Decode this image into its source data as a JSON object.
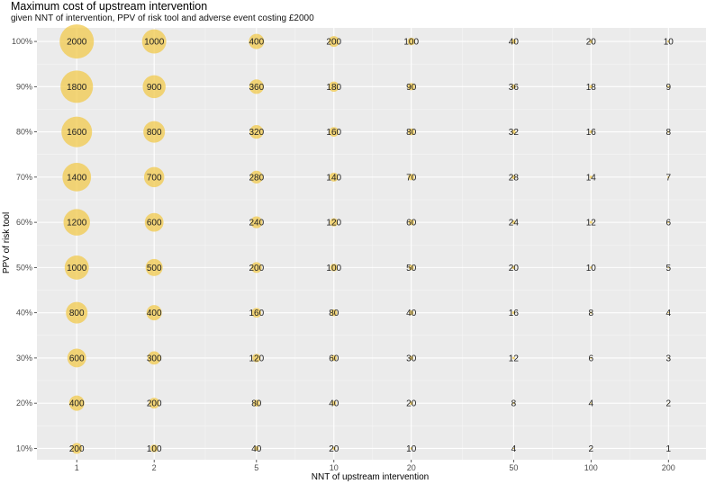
{
  "title": "Maximum cost of upstream intervention",
  "subtitle": "given NNT of intervention, PPV of risk tool and adverse event costing £2000",
  "chart_data": {
    "type": "scatter",
    "title": "Maximum cost of upstream intervention",
    "subtitle": "given NNT of intervention, PPV of risk tool and adverse event costing £2000",
    "xlabel": "NNT of upstream intervention",
    "ylabel": "PPV of risk tool",
    "x_scale": "log",
    "xlim": [
      0.7,
      280
    ],
    "ylim": [
      7.5,
      103
    ],
    "x": [
      1,
      2,
      5,
      10,
      20,
      50,
      100,
      200
    ],
    "x_tick_labels": [
      "1",
      "2",
      "5",
      "10",
      "20",
      "50",
      "100",
      "200"
    ],
    "y": [
      10,
      20,
      30,
      40,
      50,
      60,
      70,
      80,
      90,
      100
    ],
    "y_tick_labels": [
      "10%",
      "20%",
      "30%",
      "40%",
      "50%",
      "60%",
      "70%",
      "80%",
      "90%",
      "100%"
    ],
    "values": [
      [
        200,
        100,
        40,
        20,
        10,
        4,
        2,
        1
      ],
      [
        400,
        200,
        80,
        40,
        20,
        8,
        4,
        2
      ],
      [
        600,
        300,
        120,
        60,
        30,
        12,
        6,
        3
      ],
      [
        800,
        400,
        160,
        80,
        40,
        16,
        8,
        4
      ],
      [
        1000,
        500,
        200,
        100,
        50,
        20,
        10,
        5
      ],
      [
        1200,
        600,
        240,
        120,
        60,
        24,
        12,
        6
      ],
      [
        1400,
        700,
        280,
        140,
        70,
        28,
        14,
        7
      ],
      [
        1600,
        800,
        320,
        160,
        80,
        32,
        16,
        8
      ],
      [
        1800,
        900,
        360,
        180,
        90,
        36,
        18,
        9
      ],
      [
        2000,
        1000,
        400,
        200,
        100,
        40,
        20,
        10
      ]
    ],
    "point_color": "#f2c94c",
    "panel_background": "#ebebeb",
    "grid": true
  }
}
